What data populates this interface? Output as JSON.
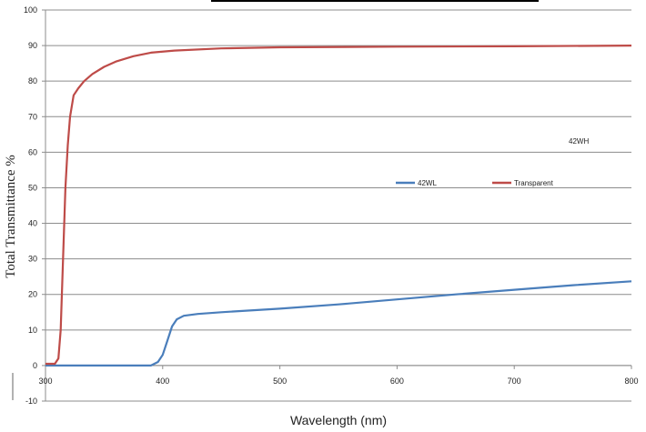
{
  "chart_data": {
    "type": "line",
    "title": "",
    "xlabel": "Wavelength (nm)",
    "ylabel": "Total Transmittance %",
    "xlim": [
      300,
      800
    ],
    "ylim": [
      -10,
      100
    ],
    "x_ticks": [
      300,
      400,
      500,
      600,
      700,
      800
    ],
    "y_ticks": [
      -10,
      0,
      10,
      20,
      30,
      40,
      50,
      60,
      70,
      80,
      90,
      100
    ],
    "grid": true,
    "legend_position": "center-right",
    "annotation": "42WH",
    "series": [
      {
        "name": "42WL",
        "color": "#4a7ebb",
        "points": [
          [
            300,
            0
          ],
          [
            350,
            0
          ],
          [
            390,
            0
          ],
          [
            396,
            1
          ],
          [
            400,
            3
          ],
          [
            404,
            7
          ],
          [
            408,
            11
          ],
          [
            412,
            13
          ],
          [
            418,
            14
          ],
          [
            430,
            14.5
          ],
          [
            450,
            15
          ],
          [
            500,
            16
          ],
          [
            550,
            17.2
          ],
          [
            600,
            18.6
          ],
          [
            650,
            20
          ],
          [
            700,
            21.3
          ],
          [
            750,
            22.6
          ],
          [
            800,
            23.7
          ]
        ]
      },
      {
        "name": "Transparent",
        "color": "#be4b48",
        "points": [
          [
            300,
            0.5
          ],
          [
            308,
            0.5
          ],
          [
            311,
            2
          ],
          [
            313,
            10
          ],
          [
            315,
            30
          ],
          [
            317,
            50
          ],
          [
            319,
            62
          ],
          [
            321,
            70
          ],
          [
            324,
            76
          ],
          [
            328,
            78
          ],
          [
            333,
            80
          ],
          [
            340,
            82
          ],
          [
            350,
            84
          ],
          [
            360,
            85.5
          ],
          [
            375,
            87
          ],
          [
            390,
            88
          ],
          [
            410,
            88.6
          ],
          [
            450,
            89.2
          ],
          [
            500,
            89.5
          ],
          [
            600,
            89.7
          ],
          [
            700,
            89.8
          ],
          [
            800,
            90
          ]
        ]
      }
    ]
  }
}
